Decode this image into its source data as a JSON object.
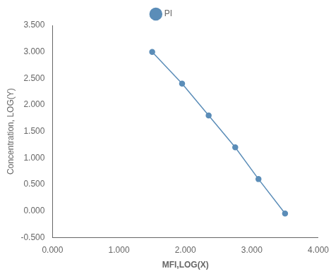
{
  "chart_data": {
    "type": "line",
    "x": [
      1.5,
      1.95,
      2.35,
      2.75,
      3.1,
      3.5
    ],
    "series": [
      {
        "name": "PI",
        "color": "#5b8db8",
        "marker": "circle",
        "values": [
          3.0,
          2.4,
          1.8,
          1.2,
          0.6,
          -0.05
        ]
      }
    ],
    "xlabel": "MFI,LOG(X)",
    "ylabel": "Concentration, LOG(Y)",
    "xlim": [
      0.0,
      4.0
    ],
    "ylim": [
      -0.5,
      3.5
    ],
    "xticks": [
      {
        "value": 0.0,
        "label": "0.000"
      },
      {
        "value": 1.0,
        "label": "1.000"
      },
      {
        "value": 2.0,
        "label": "2.000"
      },
      {
        "value": 3.0,
        "label": "3.000"
      },
      {
        "value": 4.0,
        "label": "4.000"
      }
    ],
    "yticks": [
      {
        "value": -0.5,
        "label": "-0.500"
      },
      {
        "value": 0.0,
        "label": "0.000"
      },
      {
        "value": 0.5,
        "label": "0.500"
      },
      {
        "value": 1.0,
        "label": "1.000"
      },
      {
        "value": 1.5,
        "label": "1.500"
      },
      {
        "value": 2.0,
        "label": "2.000"
      },
      {
        "value": 2.5,
        "label": "2.500"
      },
      {
        "value": 3.0,
        "label": "3.000"
      },
      {
        "value": 3.5,
        "label": "3.500"
      }
    ],
    "grid": false,
    "legend": "top"
  }
}
